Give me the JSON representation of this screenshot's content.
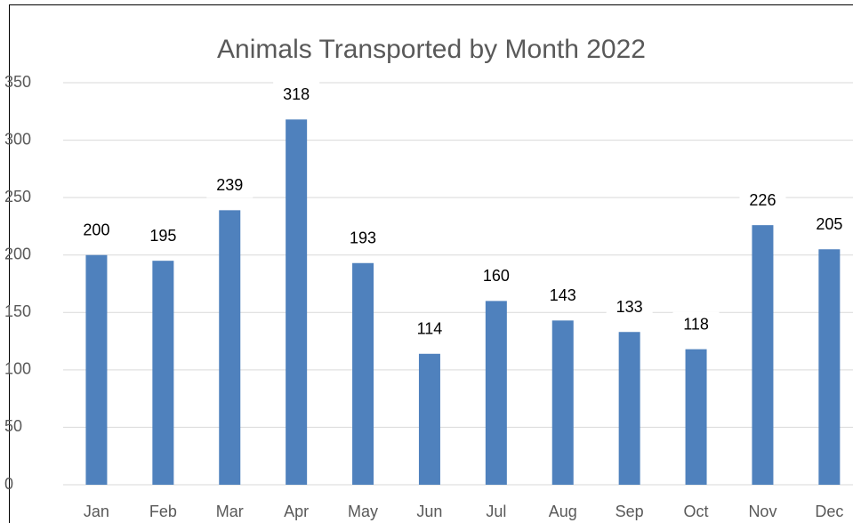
{
  "chart_data": {
    "type": "bar",
    "title": "Animals Transported by Month 2022",
    "categories": [
      "Jan",
      "Feb",
      "Mar",
      "Apr",
      "May",
      "Jun",
      "Jul",
      "Aug",
      "Sep",
      "Oct",
      "Nov",
      "Dec"
    ],
    "values": [
      200,
      195,
      239,
      318,
      193,
      114,
      160,
      143,
      133,
      118,
      226,
      205
    ],
    "color": "#4f81bd",
    "ylim": [
      0,
      350
    ],
    "yticks": [
      0,
      50,
      100,
      150,
      200,
      250,
      300,
      350
    ],
    "grid": true
  }
}
